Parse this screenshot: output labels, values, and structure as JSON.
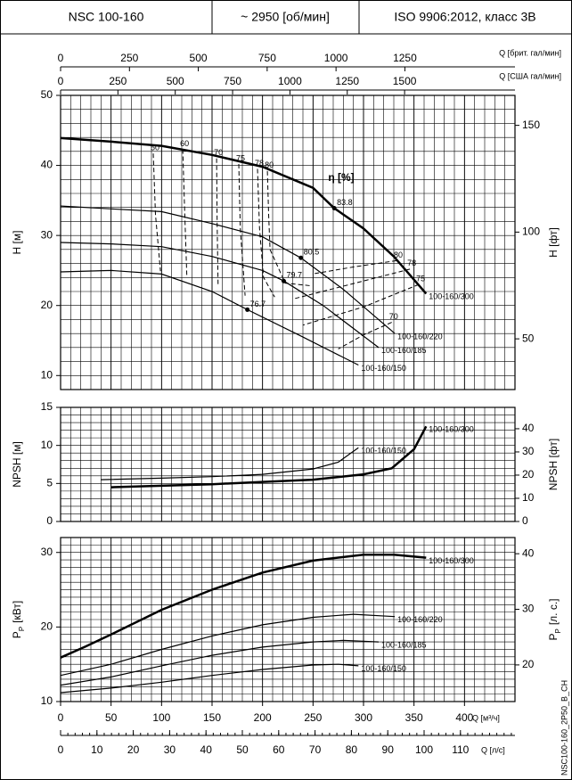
{
  "header": {
    "model": "NSC 100-160",
    "speed": "~ 2950 [об/мин]",
    "standard": "ISO 9906:2012, класс 3B"
  },
  "footer_code": "NSC100-160_2P50_B_CH",
  "chart_data": [
    {
      "type": "line",
      "ylabel": "H [м]",
      "y2label": "H [фт]",
      "xlim": [
        0,
        450
      ],
      "ylim": [
        8,
        50
      ],
      "yticks": [
        10,
        20,
        30,
        40,
        50
      ],
      "y2lim": [
        26.25,
        164.04
      ],
      "y2ticks": [
        50,
        100,
        150
      ],
      "grid": true,
      "minor_grid_step": {
        "x": 10,
        "y": 2
      },
      "top_axes": [
        {
          "label": "Q [брит. гал/мин]",
          "lim": [
            0,
            1649.7
          ],
          "ticks": [
            0,
            250,
            500,
            750,
            1000,
            1250
          ]
        },
        {
          "label": "Q [США гал/мин]",
          "lim": [
            0,
            1981.3
          ],
          "ticks": [
            0,
            250,
            500,
            750,
            1000,
            1250,
            1500
          ]
        }
      ],
      "series": [
        {
          "name": "100-160/300",
          "color": "#000000",
          "line_width": 2.5,
          "x": [
            0,
            50,
            100,
            150,
            200,
            250,
            271,
            300,
            330,
            362
          ],
          "values": [
            43.9,
            43.4,
            42.8,
            41.5,
            39.8,
            36.8,
            33.9,
            31,
            27,
            21.7
          ]
        },
        {
          "name": "100-160/220",
          "color": "#000000",
          "line_width": 1.2,
          "x": [
            0,
            50,
            100,
            150,
            200,
            238,
            280,
            331
          ],
          "values": [
            34.2,
            33.8,
            33.4,
            31.7,
            29.8,
            26.8,
            22.3,
            16
          ]
        },
        {
          "name": "100-160/185",
          "color": "#000000",
          "line_width": 1.2,
          "x": [
            0,
            50,
            100,
            150,
            200,
            221,
            260,
            315
          ],
          "values": [
            29,
            28.8,
            28.4,
            27,
            25,
            23.5,
            20,
            14
          ]
        },
        {
          "name": "100-160/150",
          "color": "#000000",
          "line_width": 1.2,
          "x": [
            0,
            50,
            100,
            150,
            185,
            240,
            295
          ],
          "values": [
            24.8,
            25,
            24.5,
            22,
            19.4,
            15.5,
            11.5
          ]
        }
      ],
      "efficiency_label": "η [%]",
      "efficiency_lines": [
        {
          "value": 50,
          "q": [
            91.8,
            94,
            98.9
          ],
          "h": [
            41.7,
            33,
            24.9
          ]
        },
        {
          "value": 60,
          "q": [
            121,
            123,
            125
          ],
          "h": [
            42.3,
            33,
            24.2
          ]
        },
        {
          "value": 70,
          "q": [
            154.5,
            155,
            156
          ],
          "h": [
            41,
            32,
            22.7
          ]
        },
        {
          "value": 75,
          "q": [
            176.5,
            178,
            182.7
          ],
          "h": [
            40.2,
            31,
            21.4
          ]
        },
        {
          "value": 78,
          "q": [
            195,
            197,
            201,
            212
          ],
          "h": [
            39.5,
            31,
            24,
            21.2
          ]
        },
        {
          "value": 80,
          "q": [
            204.8,
            206,
            207.4,
            222.4,
            248.9
          ],
          "h": [
            39.2,
            33,
            28,
            23.2,
            22.8
          ]
        },
        {
          "value": 80,
          "q": [
            332.7,
            290,
            249
          ],
          "h": [
            26.4,
            25.5,
            24.5
          ]
        },
        {
          "value": 78,
          "q": [
            346,
            300,
            232
          ],
          "h": [
            25.2,
            23.5,
            21
          ]
        },
        {
          "value": 75,
          "q": [
            354.8,
            300,
            240
          ],
          "h": [
            23,
            19.8,
            17.2
          ]
        },
        {
          "value": 70,
          "q": [
            328,
            300,
            275
          ],
          "h": [
            17.6,
            15.8,
            13.8
          ]
        }
      ],
      "efficiency_points": [
        {
          "value": 83.8,
          "q": 271,
          "h": 33.9
        },
        {
          "value": 80.5,
          "q": 238,
          "h": 26.8
        },
        {
          "value": 79.7,
          "q": 221,
          "h": 23.5
        },
        {
          "value": 76.7,
          "q": 185,
          "h": 19.4
        }
      ]
    },
    {
      "type": "line",
      "ylabel": "NPSH [м]",
      "y2label": "NPSH [фт]",
      "xlim": [
        0,
        450
      ],
      "ylim": [
        0,
        15
      ],
      "yticks": [
        0,
        5,
        10,
        15
      ],
      "y2lim": [
        0,
        49.21
      ],
      "y2ticks": [
        0,
        10,
        20,
        30,
        40
      ],
      "grid": true,
      "minor_grid_step": {
        "x": 10,
        "y": 1
      },
      "series": [
        {
          "name": "100-160/300",
          "color": "#000000",
          "line_width": 2.5,
          "x": [
            50,
            100,
            150,
            200,
            250,
            300,
            328,
            350,
            362
          ],
          "values": [
            4.5,
            4.7,
            4.9,
            5.2,
            5.5,
            6.2,
            7,
            9.5,
            12.5
          ]
        },
        {
          "name": "100-160/150",
          "color": "#000000",
          "line_width": 1.2,
          "x": [
            40,
            100,
            150,
            200,
            250,
            275,
            295
          ],
          "values": [
            5.5,
            5.7,
            5.9,
            6.2,
            6.9,
            7.8,
            9.7
          ]
        }
      ]
    },
    {
      "type": "line",
      "ylabel": {
        "main": "P",
        "sub": "P",
        "unit": "[кВт]"
      },
      "y2label": {
        "main": "P",
        "sub": "P",
        "unit": "[л. с.]"
      },
      "xlabel": "Q [м³/ч]",
      "xlim": [
        0,
        450
      ],
      "xticks": [
        0,
        50,
        100,
        150,
        200,
        250,
        300,
        350,
        400
      ],
      "ylim": [
        10,
        32
      ],
      "yticks": [
        10,
        20,
        30
      ],
      "y2lim": [
        13.41,
        42.91
      ],
      "y2ticks": [
        20,
        30,
        40
      ],
      "grid": true,
      "minor_grid_step": {
        "x": 10,
        "y": 1
      },
      "x2": {
        "label": "Q [л/с]",
        "lim": [
          0,
          125
        ],
        "ticks": [
          0,
          10,
          20,
          30,
          40,
          50,
          60,
          70,
          80,
          90,
          100,
          110
        ]
      },
      "series": [
        {
          "name": "100-160/300",
          "color": "#000000",
          "line_width": 2.5,
          "x": [
            0,
            25,
            50,
            100,
            150,
            200,
            250,
            300,
            330,
            362
          ],
          "values": [
            15.9,
            17.4,
            19,
            22.3,
            25,
            27.3,
            28.9,
            29.7,
            29.7,
            29.3
          ]
        },
        {
          "name": "100-160/220",
          "color": "#000000",
          "line_width": 1.2,
          "x": [
            0,
            50,
            100,
            150,
            200,
            250,
            290,
            331
          ],
          "values": [
            13.5,
            15,
            17,
            18.8,
            20.3,
            21.3,
            21.7,
            21.4
          ]
        },
        {
          "name": "100-160/185",
          "color": "#000000",
          "line_width": 1.2,
          "x": [
            0,
            50,
            100,
            150,
            200,
            250,
            280,
            315
          ],
          "values": [
            12.2,
            13.3,
            14.8,
            16.2,
            17.3,
            18,
            18.2,
            18
          ]
        },
        {
          "name": "100-160/150",
          "color": "#000000",
          "line_width": 1.2,
          "x": [
            0,
            50,
            100,
            150,
            200,
            250,
            275,
            295
          ],
          "values": [
            11.2,
            11.8,
            12.6,
            13.5,
            14.3,
            14.9,
            15,
            14.8
          ]
        }
      ]
    }
  ]
}
